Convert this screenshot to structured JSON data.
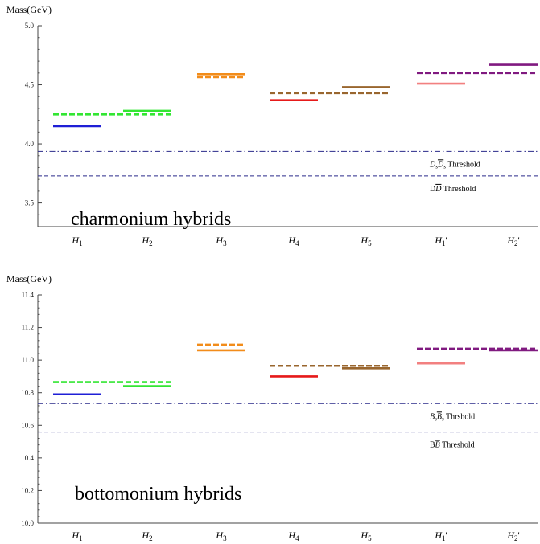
{
  "chart_data": [
    {
      "type": "scatter",
      "title": "charmonium hybrids",
      "ylabel": "Mass(GeV)",
      "xlabel": "",
      "ylim": [
        3.3,
        5.0
      ],
      "yticks": [
        3.5,
        4.0,
        4.5,
        5.0
      ],
      "categories": [
        "H1",
        "H2",
        "H3",
        "H4",
        "H5",
        "H1'",
        "H2'"
      ],
      "category_labels": [
        {
          "base": "H",
          "sub": "1",
          "prime": ""
        },
        {
          "base": "H",
          "sub": "2",
          "prime": ""
        },
        {
          "base": "H",
          "sub": "3",
          "prime": ""
        },
        {
          "base": "H",
          "sub": "4",
          "prime": ""
        },
        {
          "base": "H",
          "sub": "5",
          "prime": ""
        },
        {
          "base": "H",
          "sub": "1",
          "prime": "'"
        },
        {
          "base": "H",
          "sub": "2",
          "prime": "'"
        }
      ],
      "levels": [
        {
          "from": 0,
          "to": 0,
          "value": 4.15,
          "style": "solid",
          "color": "#1f1fd6"
        },
        {
          "from": 0,
          "to": 1,
          "value": 4.25,
          "style": "dashed",
          "color": "#33e633"
        },
        {
          "from": 1,
          "to": 1,
          "value": 4.28,
          "style": "solid",
          "color": "#33e633"
        },
        {
          "from": 2,
          "to": 2,
          "value": 4.59,
          "style": "solid",
          "color": "#f28c1a"
        },
        {
          "from": 2,
          "to": 2,
          "value": 4.565,
          "style": "dashed",
          "color": "#f28c1a"
        },
        {
          "from": 3,
          "to": 3,
          "value": 4.37,
          "style": "solid",
          "color": "#e61a1a"
        },
        {
          "from": 3,
          "to": 4,
          "value": 4.43,
          "style": "dashed",
          "color": "#99662e"
        },
        {
          "from": 4,
          "to": 4,
          "value": 4.48,
          "style": "solid",
          "color": "#99662e"
        },
        {
          "from": 5,
          "to": 5,
          "value": 4.51,
          "style": "solid",
          "color": "#f28080"
        },
        {
          "from": 5,
          "to": 6,
          "value": 4.6,
          "style": "dashed",
          "color": "#801a80"
        },
        {
          "from": 6,
          "to": 6,
          "value": 4.67,
          "style": "solid",
          "color": "#801a80"
        }
      ],
      "thresholds": [
        {
          "value": 3.937,
          "style": "dashdot",
          "color": "#2a2a8a",
          "label_parts": [
            {
              "t": "D",
              "i": true
            },
            {
              "t": "s",
              "i": true,
              "sub": true
            },
            {
              "t": "D",
              "i": true,
              "over": true
            },
            {
              "t": "s",
              "i": true,
              "sub": true
            },
            {
              "t": " Threshold",
              "i": false
            }
          ]
        },
        {
          "value": 3.729,
          "style": "dashed",
          "color": "#2a2a8a",
          "label_parts": [
            {
              "t": "D",
              "i": false
            },
            {
              "t": "D",
              "i": true,
              "over": true
            },
            {
              "t": " Threshold",
              "i": false
            }
          ]
        }
      ],
      "grid": false,
      "legend": "none"
    },
    {
      "type": "scatter",
      "title": "bottomonium hybrids",
      "ylabel": "Mass(GeV)",
      "xlabel": "",
      "ylim": [
        10.0,
        11.4
      ],
      "yticks": [
        10.0,
        10.2,
        10.4,
        10.6,
        10.8,
        11.0,
        11.2,
        11.4
      ],
      "categories": [
        "H1",
        "H2",
        "H3",
        "H4",
        "H5",
        "H1'",
        "H2'"
      ],
      "category_labels": [
        {
          "base": "H",
          "sub": "1",
          "prime": ""
        },
        {
          "base": "H",
          "sub": "2",
          "prime": ""
        },
        {
          "base": "H",
          "sub": "3",
          "prime": ""
        },
        {
          "base": "H",
          "sub": "4",
          "prime": ""
        },
        {
          "base": "H",
          "sub": "5",
          "prime": ""
        },
        {
          "base": "H",
          "sub": "1",
          "prime": "'"
        },
        {
          "base": "H",
          "sub": "2",
          "prime": "'"
        }
      ],
      "levels": [
        {
          "from": 0,
          "to": 0,
          "value": 10.79,
          "style": "solid",
          "color": "#1f1fd6"
        },
        {
          "from": 0,
          "to": 1,
          "value": 10.865,
          "style": "dashed",
          "color": "#33e633"
        },
        {
          "from": 1,
          "to": 1,
          "value": 10.84,
          "style": "solid",
          "color": "#33e633"
        },
        {
          "from": 2,
          "to": 2,
          "value": 11.095,
          "style": "dashed",
          "color": "#f28c1a"
        },
        {
          "from": 2,
          "to": 2,
          "value": 11.06,
          "style": "solid",
          "color": "#f28c1a"
        },
        {
          "from": 3,
          "to": 3,
          "value": 10.9,
          "style": "solid",
          "color": "#e61a1a"
        },
        {
          "from": 3,
          "to": 4,
          "value": 10.965,
          "style": "dashed",
          "color": "#99662e"
        },
        {
          "from": 4,
          "to": 4,
          "value": 10.95,
          "style": "solid",
          "color": "#99662e"
        },
        {
          "from": 5,
          "to": 5,
          "value": 10.98,
          "style": "solid",
          "color": "#f28080"
        },
        {
          "from": 5,
          "to": 6,
          "value": 11.07,
          "style": "dashed",
          "color": "#801a80"
        },
        {
          "from": 6,
          "to": 6,
          "value": 11.06,
          "style": "solid",
          "color": "#801a80"
        }
      ],
      "thresholds": [
        {
          "value": 10.733,
          "style": "dashdot",
          "color": "#2a2a8a",
          "label_parts": [
            {
              "t": "B",
              "i": true
            },
            {
              "t": "s",
              "i": true,
              "sub": true
            },
            {
              "t": "B",
              "i": true,
              "over": true
            },
            {
              "t": "s",
              "i": true,
              "sub": true
            },
            {
              "t": " Thrshold",
              "i": false
            }
          ]
        },
        {
          "value": 10.559,
          "style": "dashed",
          "color": "#2a2a8a",
          "label_parts": [
            {
              "t": "B",
              "i": false
            },
            {
              "t": "B",
              "i": true,
              "over": true
            },
            {
              "t": " Threshold",
              "i": false
            }
          ]
        }
      ],
      "grid": false,
      "legend": "none"
    }
  ]
}
